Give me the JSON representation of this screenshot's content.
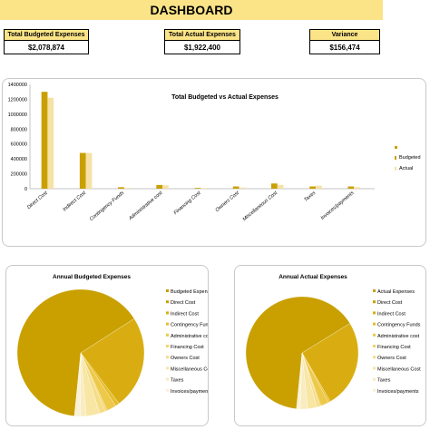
{
  "header": {
    "title": "DASHBOARD"
  },
  "kpis": [
    {
      "label": "Total Budgeted Expenses",
      "value": "$2,078,874"
    },
    {
      "label": "Total Actual Expenses",
      "value": "$1,922,400"
    },
    {
      "label": "Variance",
      "value": "$156,474"
    }
  ],
  "colors": {
    "accent": "#fbe487",
    "budgeted": "#c9a000",
    "actual": "#f6e1a6"
  },
  "chart_data": [
    {
      "type": "bar",
      "title": "Total Budgeted vs Actual Expenses",
      "categories": [
        "Direct Cost",
        "Indirect Cost",
        "Contingency Funds",
        "Administrative cost",
        "Financing Cost",
        "Owners Cost",
        "Miscellaneous Cost",
        "Taxes",
        "Invoices/payments"
      ],
      "ylim": [
        0,
        1400000
      ],
      "yticks": [
        "0",
        "200000",
        "400000",
        "600000",
        "800000",
        "1000000",
        "1200000",
        "1400000"
      ],
      "legend_position": "right",
      "series": [
        {
          "name": "Budgeted",
          "values": [
            1300000,
            480000,
            20000,
            50000,
            10000,
            30000,
            70000,
            30000,
            30000
          ]
        },
        {
          "name": "Actual",
          "values": [
            1220000,
            480000,
            10000,
            45000,
            8000,
            15000,
            50000,
            40000,
            20000
          ]
        }
      ]
    },
    {
      "type": "pie",
      "title": "Annual Budgeted Expenses",
      "legend_header": "Budgeted Expenses",
      "labels": [
        "Direct Cost",
        "Indirect Cost",
        "Contingency Funds",
        "Administrative cost",
        "Financing Cost",
        "Owners Cost",
        "Miscellaneous Cost",
        "Taxes",
        "Invoices/payments"
      ],
      "values": [
        1300000,
        480000,
        20000,
        50000,
        10000,
        30000,
        70000,
        30000,
        30000
      ],
      "colors": [
        "#c9a000",
        "#d9ad12",
        "#e6bd2a",
        "#edc94a",
        "#f2d46a",
        "#f5dd88",
        "#f8e6a5",
        "#f9ecc0",
        "#fbf2d5"
      ]
    },
    {
      "type": "pie",
      "title": "Annual Actual Expenses",
      "legend_header": "Actual Expenses",
      "labels": [
        "Direct Cost",
        "Indirect Cost",
        "Contingency Funds",
        "Administrative cost",
        "Financing Cost",
        "Owners Cost",
        "Miscellaneous Cost",
        "Taxes",
        "Invoices/payments"
      ],
      "values": [
        1220000,
        480000,
        10000,
        45000,
        8000,
        15000,
        50000,
        40000,
        20000
      ],
      "colors": [
        "#c9a000",
        "#d9ad12",
        "#e6bd2a",
        "#edc94a",
        "#f2d46a",
        "#f5dd88",
        "#f8e6a5",
        "#f9ecc0",
        "#fbf2d5"
      ]
    }
  ]
}
